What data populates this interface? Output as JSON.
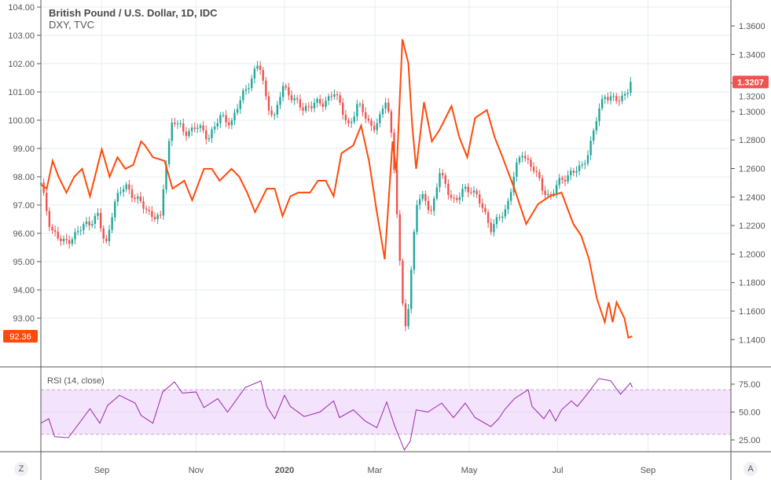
{
  "chart_data": {
    "type": "line",
    "title": "British Pound / U.S. Dollar, 1D, IDC",
    "subtitle": "DXY, TVC",
    "x_unit": "days since 2019-08-01",
    "x_ticks": [
      {
        "label": "Sep",
        "day": 31
      },
      {
        "label": "Nov",
        "day": 79
      },
      {
        "label": "2020",
        "day": 124
      },
      {
        "label": "Mar",
        "day": 170
      },
      {
        "label": "May",
        "day": 218
      },
      {
        "label": "Jul",
        "day": 263
      },
      {
        "label": "Sep",
        "day": 309
      }
    ],
    "left_axis": {
      "ticks": [
        "104.00",
        "103.00",
        "102.00",
        "101.00",
        "100.00",
        "99.00",
        "98.00",
        "97.00",
        "96.00",
        "95.00",
        "94.00",
        "93.00"
      ],
      "ylim": [
        91.5,
        104.2
      ]
    },
    "right_axis": {
      "ticks": [
        "1.3600",
        "1.3400",
        "1.3200",
        "1.3000",
        "1.2800",
        "1.2600",
        "1.2400",
        "1.2200",
        "1.2000",
        "1.1800",
        "1.1600",
        "1.1400"
      ],
      "ylim": [
        1.13,
        1.372
      ]
    },
    "series": [
      {
        "name": "DXY, TVC",
        "axis": "left",
        "style": "line",
        "color": "#ff4a0a",
        "last_label": "92.36",
        "x": [
          0,
          3,
          6,
          9,
          13,
          17,
          21,
          25,
          29,
          31,
          35,
          39,
          43,
          47,
          51,
          53,
          57,
          63,
          67,
          73,
          77,
          83,
          87,
          91,
          97,
          101,
          105,
          109,
          115,
          119,
          123,
          127,
          131,
          137,
          141,
          145,
          149,
          153,
          159,
          163,
          167,
          171,
          175,
          179,
          181,
          184,
          187,
          189,
          191,
          195,
          199,
          203,
          209,
          213,
          217,
          221,
          227,
          231,
          235,
          241,
          247,
          253,
          259,
          265,
          271,
          275,
          279,
          283,
          287,
          289,
          291,
          293,
          297,
          299,
          301
        ],
        "y": [
          97.72,
          97.58,
          98.56,
          98.0,
          97.44,
          98.0,
          98.28,
          97.31,
          98.42,
          98.97,
          98.0,
          98.69,
          98.28,
          98.42,
          99.25,
          99.11,
          98.69,
          98.56,
          97.58,
          97.86,
          97.17,
          98.28,
          98.28,
          97.86,
          98.28,
          98.0,
          97.44,
          96.75,
          97.58,
          97.58,
          96.61,
          97.31,
          97.44,
          97.44,
          97.86,
          97.86,
          97.31,
          98.83,
          99.11,
          99.81,
          98.56,
          96.75,
          95.08,
          99.25,
          98.14,
          102.86,
          102.03,
          99.81,
          98.28,
          100.64,
          99.25,
          99.67,
          100.5,
          99.39,
          98.69,
          100.08,
          100.36,
          99.39,
          98.69,
          97.58,
          96.33,
          97.03,
          97.31,
          97.44,
          96.33,
          95.92,
          95.08,
          93.69,
          92.86,
          93.56,
          92.86,
          93.56,
          93.0,
          92.31,
          92.36
        ]
      },
      {
        "name": "British Pound / U.S. Dollar",
        "axis": "right",
        "style": "candles",
        "up_color": "#26a69a",
        "down_color": "#ef5350",
        "last_label": "1.3207",
        "x": [
          0,
          5,
          11,
          17,
          23,
          29,
          33,
          37,
          43,
          49,
          55,
          61,
          63,
          67,
          73,
          79,
          85,
          91,
          97,
          103,
          107,
          111,
          115,
          119,
          123,
          127,
          133,
          139,
          143,
          149,
          153,
          157,
          161,
          165,
          169,
          173,
          176,
          179,
          181,
          183,
          185,
          187,
          189,
          191,
          195,
          199,
          203,
          207,
          211,
          215,
          219,
          225,
          229,
          233,
          237,
          241,
          245,
          251,
          255,
          259,
          263,
          269,
          275,
          279,
          283,
          287,
          291,
          295,
          299,
          301
        ],
        "y": [
          1.2487,
          1.2184,
          1.2074,
          1.2129,
          1.2211,
          1.2267,
          1.2046,
          1.2349,
          1.2487,
          1.2377,
          1.2294,
          1.2239,
          1.257,
          1.2955,
          1.2845,
          1.29,
          1.2818,
          1.2955,
          1.2928,
          1.3121,
          1.3231,
          1.3341,
          1.3066,
          1.2955,
          1.3176,
          1.3121,
          1.301,
          1.3066,
          1.3038,
          1.3148,
          1.301,
          1.29,
          1.3038,
          1.2983,
          1.2873,
          1.2955,
          1.3121,
          1.2762,
          1.2349,
          1.1853,
          1.1468,
          1.1633,
          1.1964,
          1.2349,
          1.2404,
          1.2294,
          1.257,
          1.2459,
          1.2349,
          1.2459,
          1.2459,
          1.2322,
          1.2184,
          1.2239,
          1.2322,
          1.257,
          1.2707,
          1.2597,
          1.2459,
          1.2404,
          1.2487,
          1.257,
          1.2597,
          1.2735,
          1.2955,
          1.3121,
          1.3093,
          1.3066,
          1.3176,
          1.3207
        ]
      }
    ],
    "rsi": {
      "label": "RSI (14, close)",
      "color": "#9c27b0",
      "band_color": "#f3e3fc",
      "upper": 70,
      "lower": 30,
      "ticks": [
        "75.00",
        "50.00",
        "25.00"
      ],
      "ylim": [
        14,
        90
      ],
      "x": [
        0,
        4,
        7,
        14,
        25,
        30,
        34,
        40,
        48,
        51,
        57,
        62,
        68,
        72,
        79,
        83,
        90,
        95,
        104,
        112,
        115,
        119,
        124,
        127,
        134,
        142,
        149,
        152,
        159,
        165,
        171,
        176,
        180,
        185,
        188,
        191,
        197,
        204,
        210,
        216,
        221,
        229,
        233,
        236,
        241,
        248,
        250,
        256,
        259,
        262,
        265,
        270,
        273,
        278,
        284,
        290,
        295,
        300,
        301
      ],
      "y": [
        40,
        44,
        28,
        27,
        53,
        40,
        56,
        65,
        58,
        47,
        40,
        68,
        77,
        67,
        68,
        54,
        62,
        50,
        72,
        78,
        55,
        44,
        65,
        55,
        46,
        50,
        60,
        45,
        52,
        42,
        36,
        59,
        38,
        16,
        24,
        52,
        50,
        58,
        45,
        58,
        45,
        37,
        44,
        52,
        62,
        70,
        55,
        44,
        52,
        42,
        52,
        60,
        55,
        66,
        80,
        78,
        66,
        76,
        72
      ]
    },
    "corner_buttons": {
      "left": "Z",
      "right": "A"
    }
  }
}
